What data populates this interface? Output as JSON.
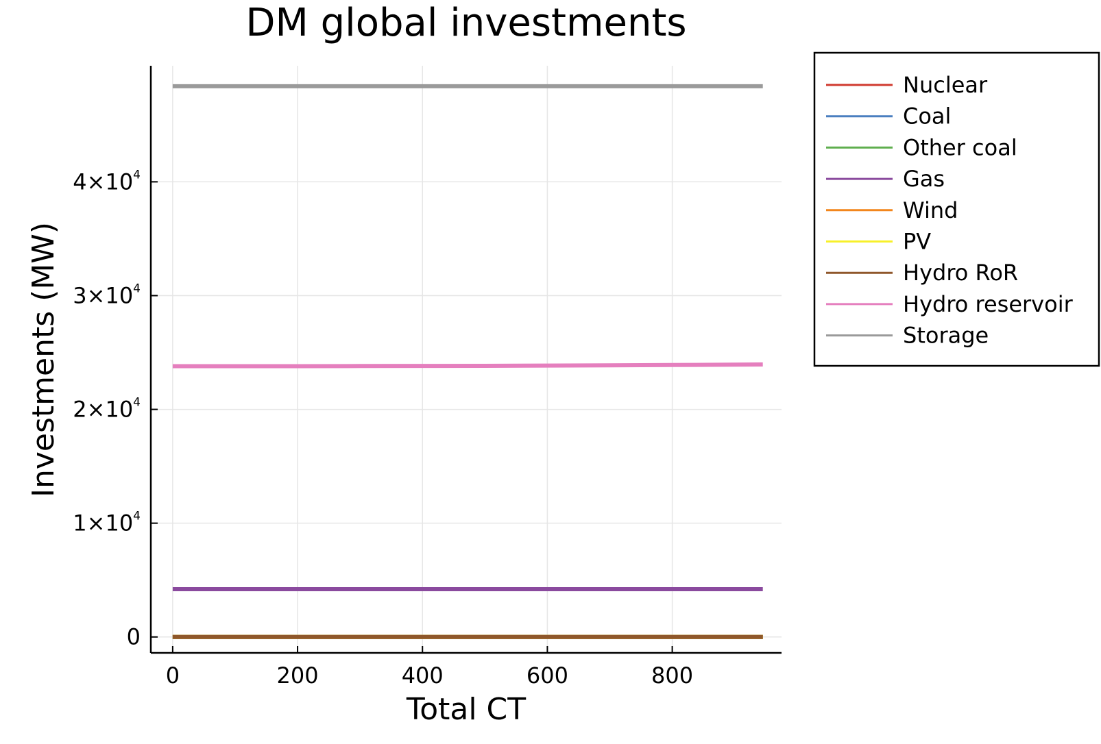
{
  "chart_data": {
    "type": "line",
    "title": "DM global investments",
    "xlabel": "Total CT",
    "ylabel": "Investments (MW)",
    "xlim": [
      -35,
      975
    ],
    "ylim": [
      -1400,
      50200
    ],
    "xticks": [
      0,
      200,
      400,
      600,
      800
    ],
    "xtick_labels": [
      "0",
      "200",
      "400",
      "600",
      "800"
    ],
    "yticks": [
      0,
      10000,
      20000,
      30000,
      40000
    ],
    "ytick_labels": [
      {
        "mantissa": "0",
        "exp": ""
      },
      {
        "mantissa": "1×10",
        "exp": "4"
      },
      {
        "mantissa": "2×10",
        "exp": "4"
      },
      {
        "mantissa": "3×10",
        "exp": "4"
      },
      {
        "mantissa": "4×10",
        "exp": "4"
      }
    ],
    "grid": true,
    "legend_position": "outside-top-right",
    "x": [
      0,
      100,
      200,
      300,
      400,
      500,
      600,
      700,
      800,
      945
    ],
    "series": [
      {
        "name": "Nuclear",
        "color": "#d03a2f",
        "values": [
          0,
          0,
          0,
          0,
          0,
          0,
          0,
          0,
          0,
          0
        ]
      },
      {
        "name": "Coal",
        "color": "#4a7fbf",
        "values": [
          0,
          0,
          0,
          0,
          0,
          0,
          0,
          0,
          0,
          0
        ]
      },
      {
        "name": "Other coal",
        "color": "#5fae4f",
        "values": [
          0,
          0,
          0,
          0,
          0,
          0,
          0,
          0,
          0,
          0
        ]
      },
      {
        "name": "Gas",
        "color": "#8a4a9e",
        "values": [
          4200,
          4200,
          4200,
          4200,
          4200,
          4200,
          4200,
          4200,
          4200,
          4200
        ]
      },
      {
        "name": "Wind",
        "color": "#f2861c",
        "values": [
          0,
          0,
          0,
          0,
          0,
          0,
          0,
          0,
          0,
          0
        ]
      },
      {
        "name": "PV",
        "color": "#f7f02a",
        "values": [
          0,
          0,
          0,
          0,
          0,
          0,
          0,
          0,
          0,
          0
        ]
      },
      {
        "name": "Hydro RoR",
        "color": "#8f572b",
        "values": [
          0,
          0,
          0,
          0,
          0,
          0,
          0,
          0,
          0,
          0
        ]
      },
      {
        "name": "Hydro reservoir",
        "color": "#e57fbe",
        "values": [
          23800,
          23800,
          23800,
          23810,
          23820,
          23830,
          23850,
          23870,
          23900,
          23950
        ]
      },
      {
        "name": "Storage",
        "color": "#9a9a9a",
        "values": [
          48400,
          48400,
          48400,
          48400,
          48400,
          48400,
          48400,
          48400,
          48400,
          48400
        ]
      }
    ]
  }
}
